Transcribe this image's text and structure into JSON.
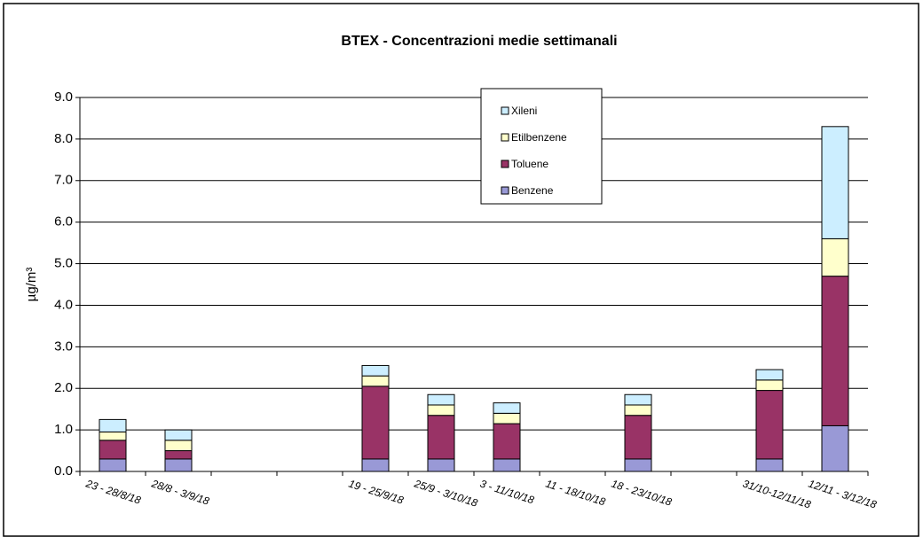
{
  "chart_data": {
    "type": "stacked_bar",
    "title": "BTEX - Concentrazioni medie settimanali",
    "y_label": "µg/m³",
    "categories": [
      "23 - 28/8/18",
      "28/8 - 3/9/18",
      null,
      null,
      "19 - 25/9/18",
      "25/9 - 3/10/18",
      "3 - 11/10/18",
      "11 - 18/10/18",
      "18 - 23/10/18",
      null,
      "31/10-12/11/18",
      "12/11 - 3/12/18"
    ],
    "series": [
      {
        "name": "Benzene",
        "color": "#9999d6",
        "values": [
          0.3,
          0.3,
          null,
          null,
          0.3,
          0.3,
          0.3,
          null,
          0.3,
          null,
          0.3,
          1.1
        ]
      },
      {
        "name": "Toluene",
        "color": "#993366",
        "values": [
          0.45,
          0.2,
          null,
          null,
          1.75,
          1.05,
          0.85,
          null,
          1.05,
          null,
          1.65,
          3.6
        ]
      },
      {
        "name": "Etilbenzene",
        "color": "#ffffcc",
        "values": [
          0.2,
          0.25,
          null,
          null,
          0.25,
          0.25,
          0.25,
          null,
          0.25,
          null,
          0.25,
          0.9
        ]
      },
      {
        "name": "Xileni",
        "color": "#cceeff",
        "values": [
          0.3,
          0.25,
          null,
          null,
          0.25,
          0.25,
          0.25,
          null,
          0.25,
          null,
          0.25,
          2.7
        ]
      }
    ],
    "ylim": [
      0,
      9
    ],
    "yticks": [
      {
        "value": 0,
        "label": "0.0"
      },
      {
        "value": 1,
        "label": "1.0"
      },
      {
        "value": 2,
        "label": "2.0"
      },
      {
        "value": 3,
        "label": "3.0"
      },
      {
        "value": 4,
        "label": "4.0"
      },
      {
        "value": 5,
        "label": "5.0"
      },
      {
        "value": 6,
        "label": "6.0"
      },
      {
        "value": 7,
        "label": "7.0"
      },
      {
        "value": 8,
        "label": "8.0"
      },
      {
        "value": 9,
        "label": "9.0"
      }
    ],
    "grid": true
  }
}
